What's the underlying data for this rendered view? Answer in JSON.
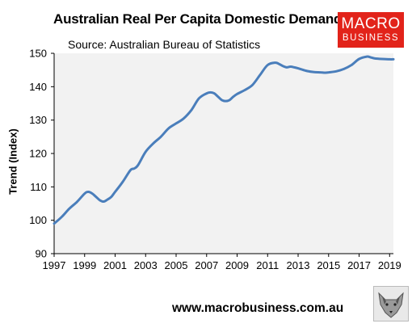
{
  "title": "Australian Real Per Capita Domestic Demand",
  "subtitle": "Source: Australian Bureau of Statistics",
  "brand": {
    "line1": "MACRO",
    "line2": "BUSINESS",
    "color": "#e2231a"
  },
  "footer": {
    "website": "www.macrobusiness.com.au"
  },
  "icons": {
    "wolf": "wolf-head-icon"
  },
  "chart_data": {
    "type": "line",
    "title": "Australian Real Per Capita Domestic Demand",
    "subtitle": "Source: Australian Bureau of Statistics",
    "xlabel": "",
    "ylabel": "Trend (Index)",
    "xlim": [
      1997,
      2019.25
    ],
    "ylim": [
      90,
      150
    ],
    "xticks": [
      1997,
      1999,
      2001,
      2003,
      2005,
      2007,
      2009,
      2011,
      2013,
      2015,
      2017,
      2019
    ],
    "yticks": [
      90,
      100,
      110,
      120,
      130,
      140,
      150
    ],
    "grid": false,
    "legend": "none",
    "line_color": "#4a7ebb",
    "plot_background": "#f2f2f2",
    "series": [
      {
        "x": [
          1997.0,
          1997.5,
          1998.0,
          1998.5,
          1999.0,
          1999.25,
          1999.5,
          1999.75,
          2000.0,
          2000.25,
          2000.5,
          2000.75,
          2001.0,
          2001.5,
          2002.0,
          2002.25,
          2002.5,
          2003.0,
          2003.5,
          2004.0,
          2004.5,
          2005.0,
          2005.5,
          2006.0,
          2006.5,
          2007.0,
          2007.25,
          2007.5,
          2007.75,
          2008.0,
          2008.25,
          2008.5,
          2008.75,
          2009.0,
          2009.5,
          2010.0,
          2010.5,
          2011.0,
          2011.5,
          2011.75,
          2012.0,
          2012.25,
          2012.5,
          2012.75,
          2013.0,
          2013.5,
          2014.0,
          2014.5,
          2014.75,
          2015.0,
          2015.5,
          2016.0,
          2016.5,
          2017.0,
          2017.5,
          2017.75,
          2018.0,
          2018.5,
          2019.0,
          2019.25
        ],
        "y": [
          99,
          101,
          103.5,
          105.5,
          108,
          108.5,
          108,
          107,
          106,
          105.6,
          106.2,
          107,
          108.5,
          111.5,
          115,
          115.5,
          116.5,
          120.5,
          123,
          125,
          127.5,
          129,
          130.5,
          133,
          136.5,
          138,
          138.3,
          138,
          137,
          136,
          135.7,
          136,
          137,
          137.8,
          139,
          140.5,
          143.5,
          146.5,
          147.2,
          146.8,
          146.2,
          145.8,
          146,
          145.8,
          145.5,
          144.8,
          144.4,
          144.3,
          144.2,
          144.3,
          144.6,
          145.3,
          146.5,
          148.3,
          149,
          148.8,
          148.5,
          148.3,
          148.2,
          148.2
        ]
      }
    ]
  }
}
